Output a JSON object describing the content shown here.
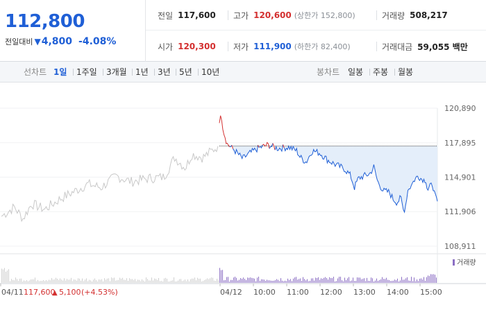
{
  "summary": {
    "current_price": "112,800",
    "change_label": "전일대비",
    "change_value": "4,800",
    "change_percent": "-4.08%",
    "row1": {
      "prev_label": "전일",
      "prev_value": "117,600",
      "high_label": "고가",
      "high_value": "120,600",
      "upper_limit": "(상한가 152,800)",
      "volume_label": "거래량",
      "volume_value": "508,217"
    },
    "row2": {
      "open_label": "시가",
      "open_value": "120,300",
      "low_label": "저가",
      "low_value": "111,900",
      "lower_limit": "(하한가 82,400)",
      "amount_label": "거래대금",
      "amount_value": "59,055 백만"
    }
  },
  "toolbar": {
    "line_chart_label": "선차트",
    "periods": [
      "1일",
      "1주일",
      "3개월",
      "1년",
      "3년",
      "5년",
      "10년"
    ],
    "active_period": "1일",
    "candle_chart_label": "봉차트",
    "candle_periods": [
      "일봉",
      "주봉",
      "월봉"
    ]
  },
  "colors": {
    "up": "#d32f2f",
    "down": "#1f5fd6",
    "prev_day_line": "#c8c8c8",
    "volume": "#8c6fc4"
  },
  "chart_data": {
    "type": "line",
    "y_ticks": [
      "120,890",
      "117,895",
      "114,901",
      "111,906",
      "108,911"
    ],
    "ylim": [
      108911,
      120890
    ],
    "reference_price": 117600,
    "x_labels": [
      "04/11",
      "04/12",
      "10:00",
      "11:00",
      "12:00",
      "13:00",
      "14:00",
      "15:00"
    ],
    "prev_day_note": {
      "date": "04/11",
      "close": "117,600",
      "change": "5,100",
      "percent": "(+4.53%)"
    },
    "volume_legend": "거래량",
    "prev_day_series": [
      [
        0,
        111500
      ],
      [
        0.06,
        112300
      ],
      [
        0.1,
        111300
      ],
      [
        0.14,
        112600
      ],
      [
        0.2,
        112100
      ],
      [
        0.27,
        113000
      ],
      [
        0.34,
        113700
      ],
      [
        0.4,
        114300
      ],
      [
        0.46,
        114000
      ],
      [
        0.53,
        115000
      ],
      [
        0.6,
        114500
      ],
      [
        0.68,
        114800
      ],
      [
        0.75,
        114900
      ],
      [
        0.8,
        116600
      ],
      [
        0.85,
        115700
      ],
      [
        0.88,
        116900
      ],
      [
        0.93,
        116600
      ],
      [
        1,
        117600
      ]
    ],
    "today_series": [
      [
        0,
        119600
      ],
      [
        0.01,
        120300
      ],
      [
        0.02,
        119000
      ],
      [
        0.04,
        117800
      ],
      [
        0.08,
        117200
      ],
      [
        0.12,
        116500
      ],
      [
        0.16,
        117000
      ],
      [
        0.2,
        117400
      ],
      [
        0.25,
        117700
      ],
      [
        0.3,
        117400
      ],
      [
        0.36,
        117500
      ],
      [
        0.4,
        117200
      ],
      [
        0.42,
        116600
      ],
      [
        0.45,
        116200
      ],
      [
        0.48,
        117200
      ],
      [
        0.52,
        117000
      ],
      [
        0.56,
        116400
      ],
      [
        0.6,
        116000
      ],
      [
        0.65,
        115600
      ],
      [
        0.68,
        115000
      ],
      [
        0.7,
        114000
      ],
      [
        0.72,
        114800
      ],
      [
        0.75,
        115000
      ],
      [
        0.78,
        115200
      ],
      [
        0.8,
        115800
      ],
      [
        0.82,
        114500
      ],
      [
        0.85,
        113700
      ],
      [
        0.88,
        113600
      ],
      [
        0.9,
        113000
      ],
      [
        0.92,
        112700
      ],
      [
        0.94,
        113100
      ],
      [
        0.955,
        111900
      ],
      [
        0.965,
        112500
      ],
      [
        0.975,
        113700
      ],
      [
        0.985,
        114100
      ],
      [
        0.99,
        114000
      ],
      [
        1,
        114400
      ]
    ],
    "today_tail_series": [
      [
        0,
        114400
      ],
      [
        0.2,
        115000
      ],
      [
        0.4,
        114700
      ],
      [
        0.55,
        114600
      ],
      [
        0.6,
        113700
      ],
      [
        0.7,
        114100
      ],
      [
        0.8,
        114300
      ],
      [
        0.9,
        113300
      ],
      [
        1,
        112800
      ]
    ]
  }
}
